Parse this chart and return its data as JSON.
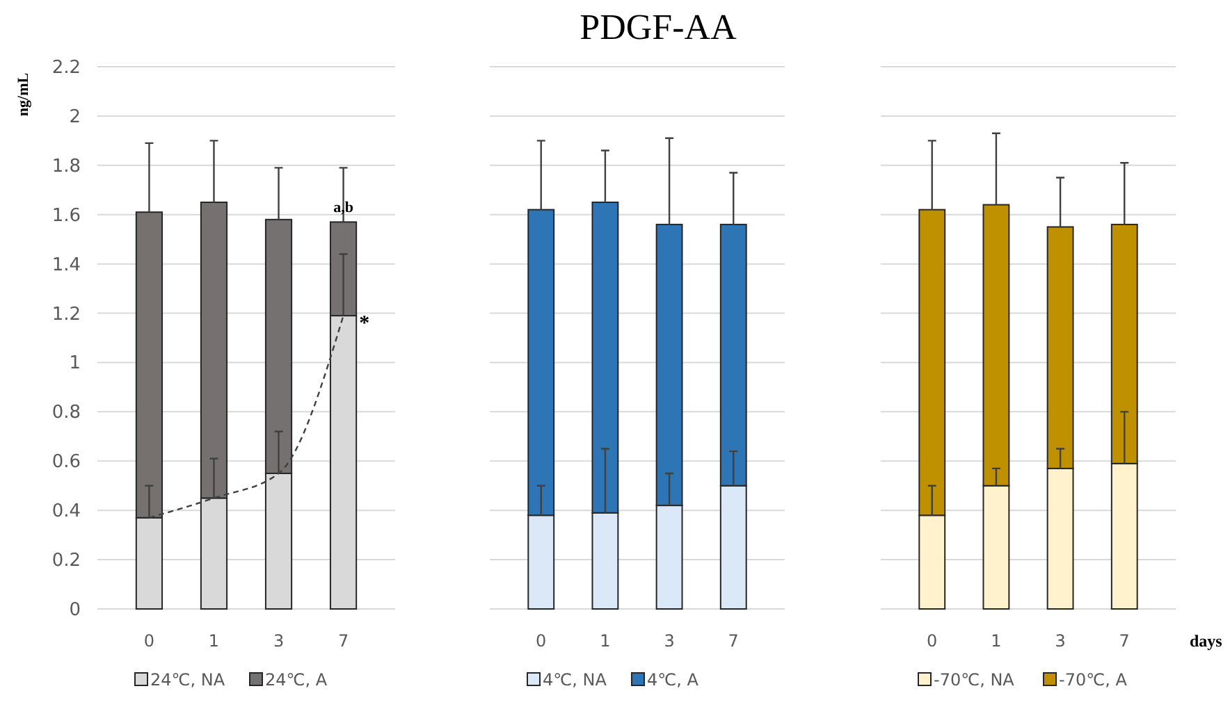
{
  "chart_data": [
    {
      "type": "bar",
      "stacked": true,
      "ylabel": "ng/mL",
      "categories": [
        "0",
        "1",
        "3",
        "7"
      ],
      "ylim": [
        0,
        2.2
      ],
      "yticks": [
        0,
        0.2,
        0.4,
        0.6,
        0.8,
        1,
        1.2,
        1.4,
        1.6,
        1.8,
        2,
        2.2
      ],
      "grid": "y",
      "legend": "bottom",
      "series": [
        {
          "name": "24℃, NA",
          "color": "#d9d9d9",
          "values": [
            0.37,
            0.45,
            0.55,
            1.19
          ],
          "errors": [
            [
              0.37,
              0.5
            ],
            [
              0.45,
              0.61
            ],
            [
              0.55,
              0.72
            ],
            [
              1.19,
              1.44
            ]
          ]
        },
        {
          "name": "24℃, A",
          "color": "#767171",
          "values": [
            1.24,
            1.2,
            1.03,
            0.38
          ],
          "errors": [
            [
              1.61,
              1.89
            ],
            [
              1.65,
              1.9
            ],
            [
              1.58,
              1.79
            ],
            [
              1.57,
              1.79
            ]
          ]
        },
        {
          "type": "line",
          "color": "#404040",
          "line_style": "dashed",
          "marker": "none",
          "values": [
            0.37,
            0.45,
            0.55,
            1.19
          ]
        }
      ],
      "annotations": [
        {
          "text": "a,b",
          "x": "7",
          "y": 1.57
        },
        {
          "text": "*",
          "x": "7",
          "y": 1.19
        }
      ]
    },
    {
      "type": "bar",
      "stacked": true,
      "title": "PDGF-AA",
      "categories": [
        "0",
        "1",
        "3",
        "7"
      ],
      "ylim": [
        0,
        2.2
      ],
      "yticks": [
        0,
        0.2,
        0.4,
        0.6,
        0.8,
        1,
        1.2,
        1.4,
        1.6,
        1.8,
        2,
        2.2
      ],
      "grid": "y",
      "legend": "bottom",
      "tick_labels": "x",
      "series": [
        {
          "name": "4℃, NA",
          "color": "#dae8f7",
          "values": [
            0.38,
            0.39,
            0.42,
            0.5
          ],
          "errors": [
            [
              0.38,
              0.5
            ],
            [
              0.39,
              0.65
            ],
            [
              0.42,
              0.55
            ],
            [
              0.5,
              0.64
            ]
          ]
        },
        {
          "name": "4℃, A",
          "color": "#2e75b6",
          "values": [
            1.24,
            1.26,
            1.14,
            1.06
          ],
          "errors": [
            [
              1.62,
              1.9
            ],
            [
              1.65,
              1.86
            ],
            [
              1.56,
              1.91
            ],
            [
              1.56,
              1.77
            ]
          ]
        }
      ]
    },
    {
      "type": "bar",
      "stacked": true,
      "xlabel": "days",
      "categories": [
        "0",
        "1",
        "3",
        "7"
      ],
      "ylim": [
        0,
        2.2
      ],
      "yticks": [
        0,
        0.2,
        0.4,
        0.6,
        0.8,
        1,
        1.2,
        1.4,
        1.6,
        1.8,
        2,
        2.2
      ],
      "grid": "y",
      "legend": "bottom",
      "tick_labels": "x",
      "series": [
        {
          "name": "-70℃, NA",
          "color": "#fff2cc",
          "values": [
            0.38,
            0.5,
            0.57,
            0.59
          ],
          "errors": [
            [
              0.38,
              0.5
            ],
            [
              0.5,
              0.57
            ],
            [
              0.57,
              0.65
            ],
            [
              0.59,
              0.8
            ]
          ]
        },
        {
          "name": "-70℃, A",
          "color": "#bf9000",
          "values": [
            1.24,
            1.14,
            0.98,
            0.97
          ],
          "errors": [
            [
              1.62,
              1.9
            ],
            [
              1.64,
              1.93
            ],
            [
              1.55,
              1.75
            ],
            [
              1.56,
              1.81
            ]
          ]
        }
      ]
    }
  ]
}
